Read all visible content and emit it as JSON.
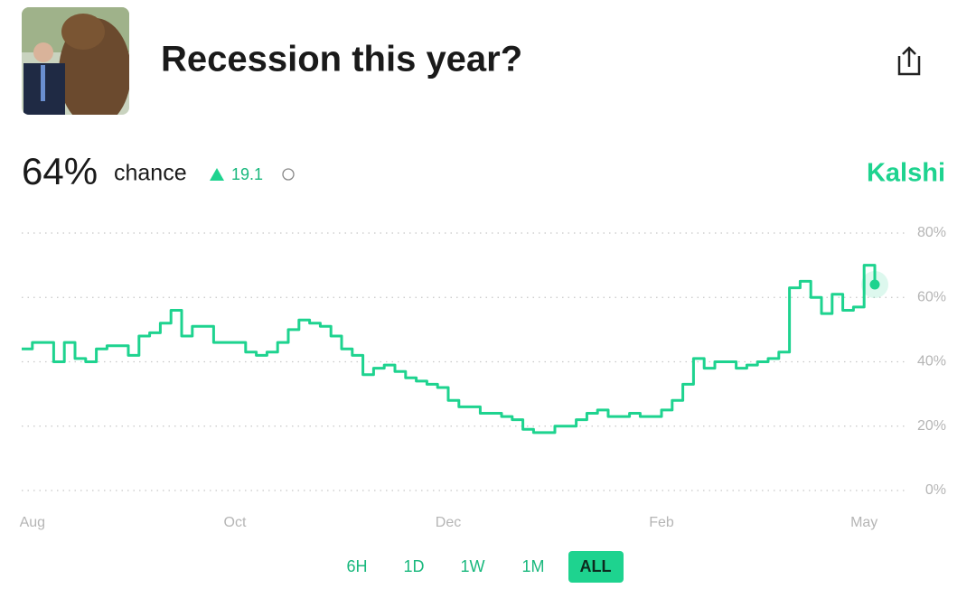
{
  "header": {
    "title": "Recession this year?"
  },
  "headline": {
    "probability": "64%",
    "suffix": "chance",
    "change": "19.1",
    "source": "Kalshi"
  },
  "range_buttons": [
    "6H",
    "1D",
    "1W",
    "1M",
    "ALL"
  ],
  "chart_data": {
    "type": "line",
    "categories": [
      null,
      "Aug",
      null,
      null,
      null,
      null,
      null,
      null,
      null,
      null,
      null,
      null,
      null,
      null,
      null,
      null,
      null,
      null,
      null,
      null,
      "Oct",
      null,
      null,
      null,
      null,
      null,
      null,
      null,
      null,
      null,
      null,
      null,
      null,
      null,
      null,
      null,
      null,
      null,
      null,
      null,
      "Dec",
      null,
      null,
      null,
      null,
      null,
      null,
      null,
      null,
      null,
      null,
      null,
      null,
      null,
      null,
      null,
      null,
      null,
      null,
      null,
      "Feb",
      null,
      null,
      null,
      null,
      null,
      null,
      null,
      null,
      null,
      null,
      null,
      null,
      null,
      null,
      null,
      null,
      null,
      null,
      "May",
      null
    ],
    "series": [
      {
        "name": "Recession this year?",
        "color": "#1ed38f",
        "values": [
          44,
          46,
          46,
          40,
          46,
          41,
          40,
          44,
          45,
          45,
          42,
          48,
          49,
          52,
          56,
          48,
          51,
          51,
          46,
          46,
          46,
          43,
          42,
          43,
          46,
          50,
          53,
          52,
          51,
          48,
          44,
          42,
          36,
          38,
          39,
          37,
          35,
          34,
          33,
          32,
          28,
          26,
          26,
          24,
          24,
          23,
          22,
          19,
          18,
          18,
          20,
          20,
          22,
          24,
          25,
          23,
          23,
          24,
          23,
          23,
          25,
          28,
          33,
          41,
          38,
          40,
          40,
          38,
          39,
          40,
          41,
          43,
          63,
          65,
          60,
          55,
          61,
          56,
          57,
          70,
          64
        ]
      }
    ],
    "ylim": [
      0,
      80
    ],
    "yticks": [
      {
        "value": 0,
        "label": "0%"
      },
      {
        "value": 20,
        "label": "20%"
      },
      {
        "value": 40,
        "label": "40%"
      },
      {
        "value": 60,
        "label": "60%"
      },
      {
        "value": 80,
        "label": "80%"
      }
    ],
    "grid": true
  }
}
